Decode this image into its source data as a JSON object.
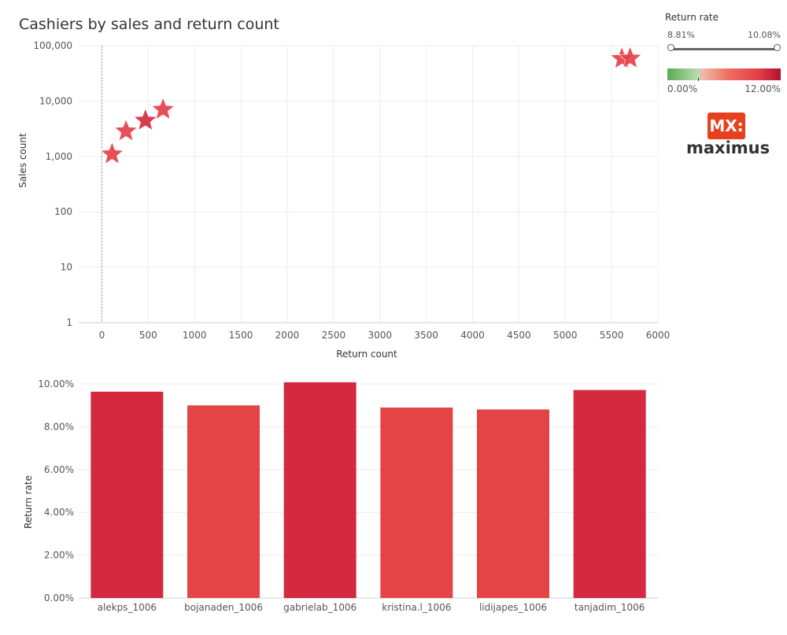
{
  "title": "Cashiers by sales and return count",
  "legend": {
    "title": "Return rate",
    "slider_min": "8.81%",
    "slider_max": "10.08%",
    "gradient_min": "0.00%",
    "gradient_max": "12.00%"
  },
  "logo": {
    "badge": "MX:",
    "wordmark": "maximus"
  },
  "colors": {
    "bar_high": "#d42a40",
    "bar_low": "#e44446",
    "star": "#e5404a",
    "star_dark": "#d42a40",
    "grid": "#ececec",
    "logo_orange": "#e8401c"
  },
  "chart_data": [
    {
      "type": "scatter",
      "marker": "star",
      "title": "Cashiers by sales and return count",
      "xlabel": "Return count",
      "ylabel": "Sales count",
      "xscale": "linear",
      "yscale": "log",
      "xlim": [
        -250,
        6000
      ],
      "ylim": [
        1,
        100000
      ],
      "xticks": [
        "0",
        "500",
        "1000",
        "1500",
        "2000",
        "2500",
        "3000",
        "3500",
        "4000",
        "4500",
        "5000",
        "5500",
        "6000"
      ],
      "yticks": [
        "1",
        "10",
        "100",
        "1,000",
        "10,000",
        "100,000"
      ],
      "grid": true,
      "points": [
        {
          "x": 110,
          "y": 1100,
          "rate": 0.093
        },
        {
          "x": 260,
          "y": 2850,
          "rate": 0.093
        },
        {
          "x": 470,
          "y": 4450,
          "rate": 0.1
        },
        {
          "x": 660,
          "y": 7000,
          "rate": 0.094
        },
        {
          "x": 5610,
          "y": 58000,
          "rate": 0.094
        },
        {
          "x": 5700,
          "y": 59000,
          "rate": 0.094
        }
      ]
    },
    {
      "type": "bar",
      "xlabel": "",
      "ylabel": "Return rate",
      "ylim": [
        0,
        10.0
      ],
      "yticks": [
        "0.00%",
        "2.00%",
        "4.00%",
        "6.00%",
        "8.00%",
        "10.00%"
      ],
      "categories": [
        "alekps_1006",
        "bojanaden_1006",
        "gabrielab_1006",
        "kristina.l_1006",
        "lidijapes_1006",
        "tanjadim_1006"
      ],
      "values": [
        9.64,
        9.0,
        10.08,
        8.9,
        8.81,
        9.72
      ]
    }
  ]
}
